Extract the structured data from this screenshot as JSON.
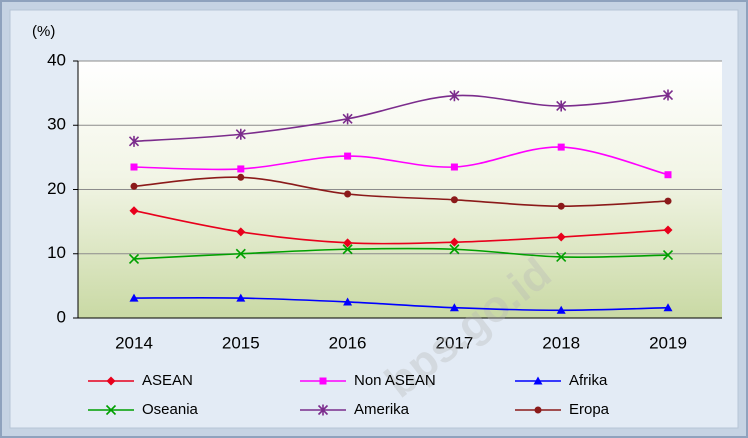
{
  "chart_data": {
    "type": "line",
    "ylabel": "(%)",
    "categories": [
      "2014",
      "2015",
      "2016",
      "2017",
      "2018",
      "2019"
    ],
    "ylim": [
      0,
      40
    ],
    "yticks": [
      0,
      10,
      20,
      30,
      40
    ],
    "grid": true,
    "smooth": true,
    "watermark": "bps.go.id",
    "series": [
      {
        "name": "ASEAN",
        "color": "#e8001c",
        "marker": "diamond",
        "values": [
          16.7,
          13.4,
          11.7,
          11.8,
          12.6,
          13.7
        ]
      },
      {
        "name": "Non ASEAN",
        "color": "#ff00ff",
        "marker": "square",
        "values": [
          23.5,
          23.2,
          25.2,
          23.5,
          26.6,
          22.3
        ]
      },
      {
        "name": "Afrika",
        "color": "#0000ff",
        "marker": "triangle",
        "values": [
          3.1,
          3.1,
          2.5,
          1.6,
          1.2,
          1.6
        ]
      },
      {
        "name": "Oseania",
        "color": "#00a000",
        "marker": "x",
        "values": [
          9.2,
          10.0,
          10.7,
          10.7,
          9.5,
          9.8
        ]
      },
      {
        "name": "Amerika",
        "color": "#7b2c8c",
        "marker": "asterisk",
        "values": [
          27.5,
          28.6,
          31.0,
          34.6,
          33.0,
          34.7
        ]
      },
      {
        "name": "Eropa",
        "color": "#8b1a1a",
        "marker": "circle",
        "values": [
          20.5,
          21.9,
          19.3,
          18.4,
          17.4,
          18.2
        ]
      }
    ]
  }
}
